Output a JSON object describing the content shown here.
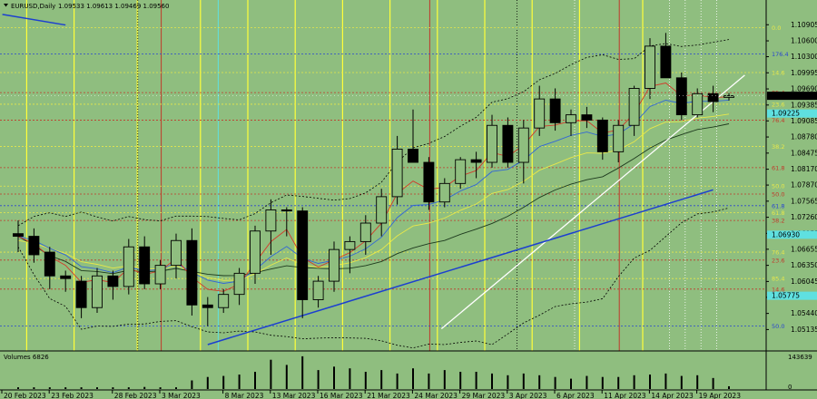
{
  "header": {
    "title": "EURUSD,Daily",
    "values": "1.09533 1.09613 1.09469 1.09560"
  },
  "volume": {
    "label": "Volumes 6826",
    "max_label": "143639",
    "zero_label": "0"
  },
  "colors": {
    "background": "#8fbe7f",
    "bull": "#8fbe7f",
    "bear": "#000000",
    "ema_red": "#d23a2a",
    "ema_blue": "#3266d6",
    "ema_yellow": "#e8e84a",
    "sma_black": "#1e3a1e",
    "trend_white": "#ffffff",
    "trend_blue": "#1c3fd0",
    "vline_yellow": "#ffff3a",
    "vline_red": "#c0392b",
    "vline_cyan": "#5fe0e0"
  },
  "chart_data": {
    "type": "candlestick",
    "title": "EURUSD,Daily",
    "ylim": [
      1.0485,
      1.1115
    ],
    "price_ticks": [
      "1.10905",
      "1.10600",
      "1.10300",
      "1.09995",
      "1.09690",
      "1.09385",
      "1.09085",
      "1.08780",
      "1.08475",
      "1.08170",
      "1.07870",
      "1.07565",
      "1.07260",
      "1.06955",
      "1.06655",
      "1.06350",
      "1.06045",
      "1.05745",
      "1.05440",
      "1.05135"
    ],
    "current_price": "1.09560",
    "cyan_price_labels": [
      "1.09225",
      "1.06930",
      "1.05775"
    ],
    "date_labels": [
      "20 Feb 2023",
      "23 Feb 2023",
      "28 Feb 2023",
      "3 Mar 2023",
      "8 Mar 2023",
      "13 Mar 2023",
      "16 Mar 2023",
      "21 Mar 2023",
      "24 Mar 2023",
      "29 Mar 2023",
      "3 Apr 2023",
      "6 Apr 2023",
      "11 Apr 2023",
      "14 Apr 2023",
      "19 Apr 2023"
    ],
    "date_label_bars": [
      0,
      3,
      7,
      10,
      14,
      17,
      20,
      23,
      26,
      29,
      32,
      35,
      38,
      41,
      44
    ],
    "candles": [
      {
        "o": 1.0695,
        "h": 1.072,
        "l": 1.066,
        "c": 1.069
      },
      {
        "o": 1.069,
        "h": 1.0705,
        "l": 1.064,
        "c": 1.0655
      },
      {
        "o": 1.066,
        "h": 1.067,
        "l": 1.059,
        "c": 1.0615
      },
      {
        "o": 1.0615,
        "h": 1.0625,
        "l": 1.0585,
        "c": 1.061
      },
      {
        "o": 1.0605,
        "h": 1.0615,
        "l": 1.0535,
        "c": 1.0555
      },
      {
        "o": 1.0555,
        "h": 1.063,
        "l": 1.0545,
        "c": 1.0615
      },
      {
        "o": 1.0615,
        "h": 1.0625,
        "l": 1.057,
        "c": 1.0595
      },
      {
        "o": 1.0595,
        "h": 1.0685,
        "l": 1.058,
        "c": 1.067
      },
      {
        "o": 1.067,
        "h": 1.069,
        "l": 1.059,
        "c": 1.06
      },
      {
        "o": 1.06,
        "h": 1.0645,
        "l": 1.059,
        "c": 1.0635
      },
      {
        "o": 1.0635,
        "h": 1.0695,
        "l": 1.061,
        "c": 1.0682
      },
      {
        "o": 1.0682,
        "h": 1.0705,
        "l": 1.054,
        "c": 1.056
      },
      {
        "o": 1.056,
        "h": 1.0575,
        "l": 1.052,
        "c": 1.0555
      },
      {
        "o": 1.0555,
        "h": 1.059,
        "l": 1.0545,
        "c": 1.058
      },
      {
        "o": 1.058,
        "h": 1.063,
        "l": 1.056,
        "c": 1.062
      },
      {
        "o": 1.062,
        "h": 1.071,
        "l": 1.06,
        "c": 1.07
      },
      {
        "o": 1.07,
        "h": 1.076,
        "l": 1.0655,
        "c": 1.074
      },
      {
        "o": 1.074,
        "h": 1.0745,
        "l": 1.069,
        "c": 1.0738
      },
      {
        "o": 1.0738,
        "h": 1.0745,
        "l": 1.0535,
        "c": 1.057
      },
      {
        "o": 1.057,
        "h": 1.0615,
        "l": 1.0555,
        "c": 1.0605
      },
      {
        "o": 1.0605,
        "h": 1.068,
        "l": 1.0585,
        "c": 1.0665
      },
      {
        "o": 1.0665,
        "h": 1.069,
        "l": 1.062,
        "c": 1.068
      },
      {
        "o": 1.068,
        "h": 1.073,
        "l": 1.0655,
        "c": 1.0715
      },
      {
        "o": 1.0715,
        "h": 1.078,
        "l": 1.069,
        "c": 1.0765
      },
      {
        "o": 1.0765,
        "h": 1.088,
        "l": 1.075,
        "c": 1.0855
      },
      {
        "o": 1.0855,
        "h": 1.093,
        "l": 1.083,
        "c": 1.083
      },
      {
        "o": 1.083,
        "h": 1.084,
        "l": 1.074,
        "c": 1.0755
      },
      {
        "o": 1.0755,
        "h": 1.08,
        "l": 1.0745,
        "c": 1.079
      },
      {
        "o": 1.079,
        "h": 1.084,
        "l": 1.078,
        "c": 1.0835
      },
      {
        "o": 1.0835,
        "h": 1.085,
        "l": 1.08,
        "c": 1.083
      },
      {
        "o": 1.083,
        "h": 1.092,
        "l": 1.082,
        "c": 1.09
      },
      {
        "o": 1.09,
        "h": 1.0915,
        "l": 1.082,
        "c": 1.083
      },
      {
        "o": 1.083,
        "h": 1.091,
        "l": 1.079,
        "c": 1.0895
      },
      {
        "o": 1.0895,
        "h": 1.0975,
        "l": 1.088,
        "c": 1.095
      },
      {
        "o": 1.095,
        "h": 1.097,
        "l": 1.089,
        "c": 1.0905
      },
      {
        "o": 1.0905,
        "h": 1.093,
        "l": 1.088,
        "c": 1.092
      },
      {
        "o": 1.092,
        "h": 1.0935,
        "l": 1.0895,
        "c": 1.091
      },
      {
        "o": 1.091,
        "h": 1.0915,
        "l": 1.0835,
        "c": 1.085
      },
      {
        "o": 1.085,
        "h": 1.091,
        "l": 1.083,
        "c": 1.09
      },
      {
        "o": 1.09,
        "h": 1.0975,
        "l": 1.088,
        "c": 1.097
      },
      {
        "o": 1.097,
        "h": 1.1065,
        "l": 1.095,
        "c": 1.105
      },
      {
        "o": 1.105,
        "h": 1.1075,
        "l": 1.099,
        "c": 1.099
      },
      {
        "o": 1.099,
        "h": 1.1,
        "l": 1.091,
        "c": 1.092
      },
      {
        "o": 1.092,
        "h": 1.097,
        "l": 1.0915,
        "c": 1.096
      },
      {
        "o": 1.096,
        "h": 1.0975,
        "l": 1.0925,
        "c": 1.0945
      },
      {
        "o": 1.0953,
        "h": 1.0961,
        "l": 1.0947,
        "c": 1.0956
      }
    ],
    "volumes": [
      0.05,
      0.05,
      0.05,
      0.05,
      0.05,
      0.05,
      0.05,
      0.05,
      0.06,
      0.05,
      0.05,
      0.25,
      0.35,
      0.38,
      0.42,
      0.5,
      0.85,
      0.7,
      0.95,
      0.55,
      0.65,
      0.6,
      0.5,
      0.55,
      0.45,
      0.6,
      0.45,
      0.55,
      0.5,
      0.5,
      0.45,
      0.4,
      0.45,
      0.4,
      0.35,
      0.3,
      0.38,
      0.35,
      0.35,
      0.4,
      0.42,
      0.45,
      0.38,
      0.4,
      0.32,
      0.08
    ],
    "fib_levels": [
      {
        "label": "0.0",
        "price": 1.1085,
        "color": "#e8e84a"
      },
      {
        "label": "176.4",
        "price": 1.1035,
        "color": "#2a46d0"
      },
      {
        "label": "14.6",
        "price": 1.1,
        "color": "#e8e84a"
      },
      {
        "label": "85.4",
        "price": 1.0962,
        "color": "#c0392b"
      },
      {
        "label": "23.6",
        "price": 1.094,
        "color": "#e8e84a"
      },
      {
        "label": "76.4",
        "price": 1.091,
        "color": "#c0392b"
      },
      {
        "label": "38.2",
        "price": 1.086,
        "color": "#e8e84a"
      },
      {
        "label": "61.8",
        "price": 1.082,
        "color": "#c0392b"
      },
      {
        "label": "50.0",
        "price": 1.0785,
        "color": "#e8e84a"
      },
      {
        "label": "50.0",
        "price": 1.077,
        "color": "#c0392b"
      },
      {
        "label": "61.8",
        "price": 1.0748,
        "color": "#2a46d0"
      },
      {
        "label": "61.8",
        "price": 1.0735,
        "color": "#e8e84a"
      },
      {
        "label": "38.2",
        "price": 1.072,
        "color": "#c0392b"
      },
      {
        "label": "76.4",
        "price": 1.066,
        "color": "#e8e84a"
      },
      {
        "label": "23.6",
        "price": 1.0645,
        "color": "#c0392b"
      },
      {
        "label": "85.4",
        "price": 1.061,
        "color": "#e8e84a"
      },
      {
        "label": "14.6",
        "price": 1.059,
        "color": "#c0392b"
      },
      {
        "label": "50.0",
        "price": 1.052,
        "color": "#2a46d0"
      }
    ],
    "trend_white": [
      [
        26.8,
        1.0515
      ],
      [
        46.0,
        1.0995
      ]
    ],
    "trend_blue": [
      [
        12.0,
        1.0485
      ],
      [
        44.0,
        1.0778
      ]
    ],
    "trend_blue_top": [
      [
        -1.0,
        1.111
      ],
      [
        3.0,
        1.109
      ]
    ],
    "yellow_vlines": [
      1,
      4,
      8,
      12,
      15,
      18,
      21,
      24,
      27,
      30,
      33,
      36,
      40
    ],
    "red_vlines": [
      9,
      26,
      38
    ],
    "cyan_vlines": [
      11
    ],
    "white_dotted_vlines": [
      35,
      41,
      42,
      43,
      44
    ],
    "black_dotted_vlines": [
      7,
      31
    ]
  }
}
